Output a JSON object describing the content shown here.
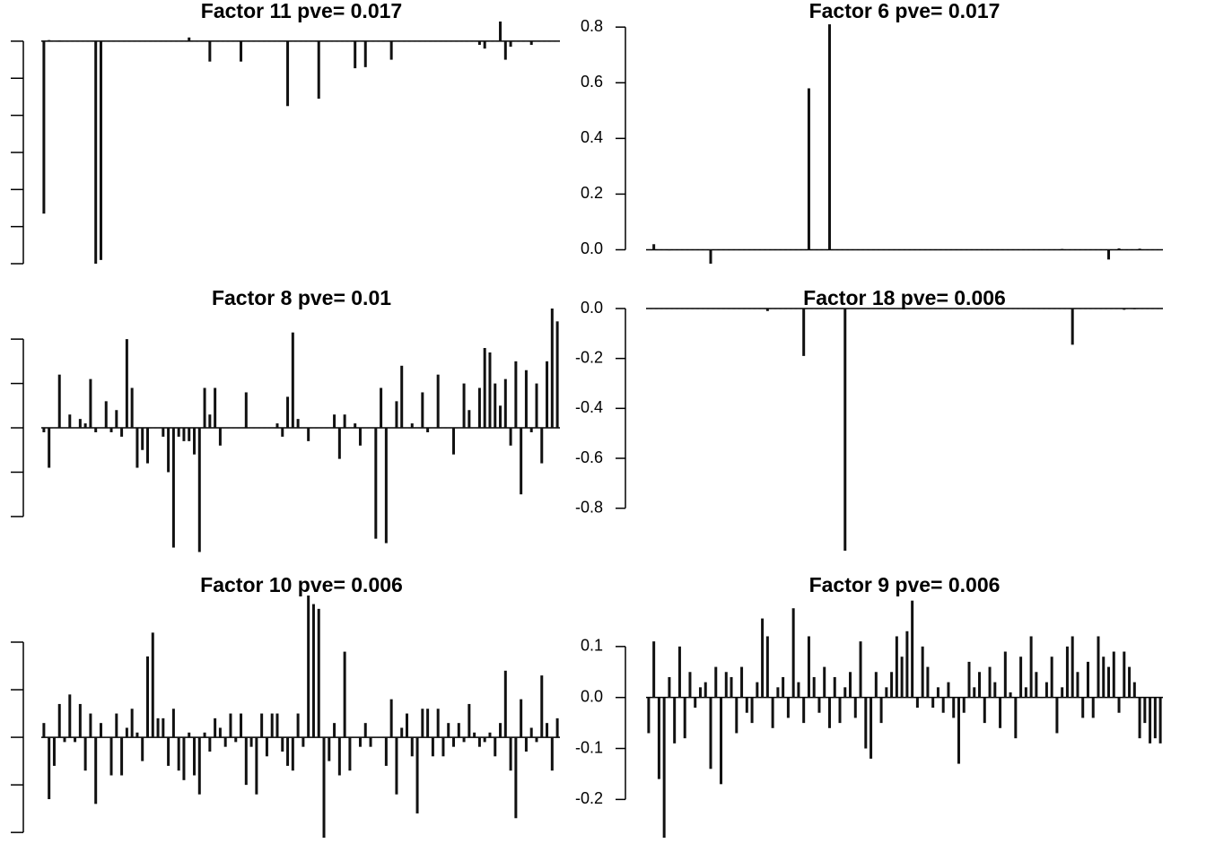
{
  "chart_data": [
    {
      "type": "bar",
      "title": "Factor 11 pve= 0.017",
      "color": "#111111",
      "tick_labels": false,
      "ylim": [
        -0.6,
        0.053
      ],
      "yticks": [
        0,
        -0.1,
        -0.2,
        -0.3,
        -0.4,
        -0.5,
        -0.6
      ],
      "values": [
        -0.465,
        0.003,
        0,
        0.002,
        0,
        0,
        0,
        0,
        0,
        0,
        -0.6,
        -0.59,
        0,
        0,
        0,
        0,
        0,
        0,
        0,
        0,
        0,
        0,
        0,
        0,
        0,
        0,
        0,
        0,
        0.01,
        0,
        0,
        0,
        -0.055,
        0,
        0,
        0,
        0,
        0,
        -0.055,
        0,
        0,
        0,
        0,
        0,
        0,
        0,
        0,
        -0.175,
        0,
        0,
        0,
        0,
        0,
        -0.155,
        0,
        0,
        0,
        0,
        0,
        0,
        -0.073,
        0,
        -0.07,
        0,
        0,
        0,
        0,
        -0.05,
        0,
        0,
        0,
        0,
        0,
        0,
        0,
        0,
        0,
        0,
        0,
        0,
        0,
        0,
        0,
        0,
        -0.01,
        -0.02,
        0,
        0,
        0.053,
        -0.05,
        -0.015,
        0,
        0,
        0,
        -0.01,
        0,
        0,
        0,
        0,
        0
      ]
    },
    {
      "type": "bar",
      "title": "Factor 6 pve= 0.017",
      "color": "#111111",
      "tick_labels": true,
      "ylim": [
        -0.05,
        0.82
      ],
      "yticks": [
        {
          "value": 0,
          "label": "0.0"
        },
        0.2,
        0.4,
        0.6,
        0.8
      ],
      "values": [
        0,
        0.02,
        0,
        0,
        -0.002,
        0,
        0,
        0,
        0,
        0,
        0,
        0,
        -0.05,
        0,
        0,
        0,
        0,
        0,
        0,
        0,
        0,
        0,
        0,
        0,
        0,
        0,
        0,
        0,
        0,
        0,
        0,
        0.58,
        0,
        0,
        0,
        0.81,
        0,
        0,
        0,
        0,
        0,
        0,
        0,
        0,
        0,
        0,
        0,
        0,
        0,
        0,
        0,
        0,
        0,
        0,
        0,
        0,
        0,
        0,
        0,
        0,
        0,
        0,
        0,
        0,
        0,
        0,
        0,
        0,
        0,
        0,
        0,
        0,
        0,
        0,
        0,
        0,
        0,
        0,
        0,
        0,
        0.003,
        0,
        0,
        0,
        0,
        0,
        0,
        0,
        0,
        -0.035,
        0,
        0.005,
        0,
        0,
        0,
        0.004,
        0,
        0,
        0,
        0
      ]
    },
    {
      "type": "bar",
      "title": "Factor 8 pve= 0.01",
      "color": "#111111",
      "tick_labels": false,
      "ylim": [
        -0.277,
        0.269
      ],
      "yticks": [
        0.2,
        0.1,
        0,
        -0.1,
        -0.2
      ],
      "values": [
        -0.01,
        -0.09,
        0,
        0.12,
        0,
        0.03,
        0,
        0.02,
        0.01,
        0.11,
        -0.01,
        0,
        0.06,
        -0.01,
        0.04,
        -0.02,
        0.2,
        0.09,
        -0.09,
        -0.05,
        -0.08,
        0,
        0,
        -0.02,
        -0.1,
        -0.27,
        -0.02,
        -0.03,
        -0.03,
        -0.06,
        -0.28,
        0.09,
        0.03,
        0.09,
        -0.04,
        0,
        0,
        0,
        0,
        0.08,
        0,
        0,
        0,
        0,
        0,
        0.01,
        -0.02,
        0.07,
        0.215,
        0.02,
        0,
        -0.03,
        0,
        0,
        0,
        0,
        0.03,
        -0.07,
        0.03,
        0,
        0.01,
        -0.04,
        0,
        0,
        -0.25,
        0.09,
        -0.26,
        0,
        0.06,
        0.14,
        0,
        0.01,
        0,
        0.08,
        -0.01,
        0,
        0.12,
        0,
        0,
        -0.06,
        0,
        0.1,
        0.04,
        0,
        0.09,
        0.18,
        0.17,
        0.1,
        0.05,
        0.11,
        -0.04,
        0.15,
        -0.15,
        0.13,
        -0.01,
        0.1,
        -0.08,
        0.15,
        0.269,
        0.24
      ]
    },
    {
      "type": "bar",
      "title": "Factor 18 pve= 0.006",
      "color": "#111111",
      "tick_labels": true,
      "ylim": [
        -0.97,
        0
      ],
      "yticks": [
        {
          "value": 0,
          "label": "0.0"
        },
        -0.2,
        -0.4,
        -0.6,
        -0.8
      ],
      "values": [
        0,
        0,
        0,
        0,
        0,
        0,
        0,
        0,
        0,
        0,
        0,
        0,
        0,
        0,
        0,
        0,
        0,
        0,
        0,
        0,
        0,
        0,
        0,
        -0.01,
        0,
        0,
        0,
        0,
        0,
        0,
        -0.19,
        0,
        0,
        0,
        0,
        0,
        0,
        0,
        -0.97,
        0,
        0,
        0,
        0,
        0,
        0,
        0,
        0,
        0,
        0,
        0,
        0,
        0,
        0,
        0,
        0,
        0,
        0,
        0,
        0,
        0,
        0,
        0,
        0,
        0,
        0,
        0,
        0,
        0,
        0,
        0,
        0,
        0,
        0,
        0,
        0,
        0,
        0,
        0,
        0,
        0,
        0,
        0,
        -0.145,
        0,
        0,
        0,
        0,
        0,
        0,
        0,
        0,
        0,
        -0.005,
        0,
        -0.003,
        0,
        0,
        0,
        0,
        0
      ]
    },
    {
      "type": "bar",
      "title": "Factor 10 pve= 0.006",
      "color": "#111111",
      "tick_labels": false,
      "ylim": [
        -0.211,
        0.298
      ],
      "yticks": [
        0.2,
        0.1,
        0,
        -0.1,
        -0.2
      ],
      "values": [
        0.03,
        -0.13,
        -0.06,
        0.07,
        -0.01,
        0.09,
        -0.01,
        0.07,
        -0.07,
        0.05,
        -0.14,
        0.03,
        0,
        -0.08,
        0.05,
        -0.08,
        0.02,
        0.06,
        0.01,
        -0.05,
        0.17,
        0.22,
        0.04,
        0.04,
        -0.06,
        0.06,
        -0.07,
        -0.09,
        0.01,
        -0.08,
        -0.12,
        0.01,
        -0.03,
        0.04,
        0.02,
        -0.02,
        0.05,
        -0.01,
        0.05,
        -0.1,
        -0.02,
        -0.12,
        0.05,
        -0.04,
        0.05,
        0.05,
        -0.03,
        -0.06,
        -0.07,
        0.05,
        -0.02,
        0.298,
        0.28,
        0.27,
        -0.211,
        -0.05,
        0.03,
        -0.08,
        0.18,
        -0.07,
        0,
        -0.02,
        0.03,
        -0.02,
        0,
        0,
        -0.06,
        0.08,
        -0.12,
        0.02,
        0.05,
        -0.04,
        -0.16,
        0.06,
        0.06,
        -0.04,
        0.06,
        -0.04,
        0.03,
        -0.02,
        0.03,
        -0.01,
        0.07,
        0.01,
        -0.02,
        -0.01,
        0.01,
        -0.04,
        0.03,
        0.14,
        -0.07,
        -0.17,
        0.08,
        -0.03,
        0.02,
        -0.01,
        0.13,
        0.03,
        -0.07,
        0.04
      ]
    },
    {
      "type": "bar",
      "title": "Factor 9 pve= 0.006",
      "color": "#111111",
      "tick_labels": true,
      "ylim": [
        -0.275,
        0.2
      ],
      "yticks": [
        0.1,
        {
          "value": 0,
          "label": "0.0"
        },
        -0.1,
        -0.2
      ],
      "values": [
        -0.07,
        0.11,
        -0.16,
        -0.275,
        0.04,
        -0.09,
        0.1,
        -0.08,
        0.05,
        -0.02,
        0.02,
        0.03,
        -0.14,
        0.06,
        -0.17,
        0.05,
        0.04,
        -0.07,
        0.06,
        -0.03,
        -0.05,
        0.03,
        0.155,
        0.12,
        -0.06,
        0.02,
        0.04,
        -0.04,
        0.175,
        0.03,
        -0.05,
        0.12,
        0.04,
        -0.03,
        0.06,
        -0.06,
        0.04,
        -0.05,
        0.02,
        0.05,
        -0.04,
        0.11,
        -0.1,
        -0.12,
        0.05,
        -0.05,
        0.02,
        0.05,
        0.12,
        0.08,
        0.13,
        0.19,
        -0.02,
        0.1,
        0.06,
        -0.02,
        0.02,
        -0.03,
        0.03,
        -0.04,
        -0.13,
        -0.03,
        0.07,
        0.02,
        0.05,
        -0.05,
        0.06,
        0.03,
        -0.06,
        0.09,
        0.01,
        -0.08,
        0.08,
        0.02,
        0.12,
        0.05,
        0,
        0.03,
        0.08,
        -0.07,
        0.02,
        0.1,
        0.12,
        0.05,
        -0.04,
        0.07,
        -0.04,
        0.12,
        0.08,
        0.06,
        0.09,
        -0.03,
        0.09,
        0.06,
        0.03,
        -0.08,
        -0.05,
        -0.09,
        -0.08,
        -0.09
      ]
    }
  ]
}
